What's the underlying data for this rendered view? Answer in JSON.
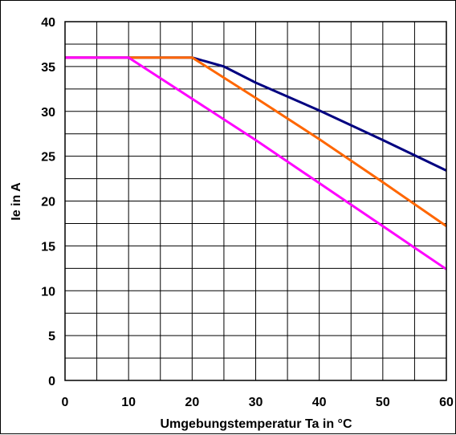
{
  "chart_data": {
    "type": "line",
    "title": "",
    "xlabel": "Umgebungstemperatur Ta in °C",
    "ylabel": "Ie in A",
    "xlim": [
      0,
      60
    ],
    "ylim": [
      0,
      40
    ],
    "x_ticks": [
      0,
      10,
      20,
      30,
      40,
      50,
      60
    ],
    "y_ticks": [
      0,
      5,
      10,
      15,
      20,
      25,
      30,
      35,
      40
    ],
    "x_tick_labels": [
      "0",
      "10",
      "20",
      "30",
      "40",
      "50",
      "60"
    ],
    "y_tick_labels": [
      "0",
      "5",
      "10",
      "15",
      "20",
      "25",
      "30",
      "35",
      "40"
    ],
    "grid": true,
    "legend": "none",
    "series": [
      {
        "color": "#000080",
        "points": [
          [
            0,
            36
          ],
          [
            20,
            36
          ],
          [
            25,
            35
          ],
          [
            30,
            33.2
          ],
          [
            40,
            30.1
          ],
          [
            50,
            26.8
          ],
          [
            60,
            23.4
          ]
        ]
      },
      {
        "color": "#ff6600",
        "points": [
          [
            0,
            36
          ],
          [
            20,
            36
          ],
          [
            30,
            31.5
          ],
          [
            40,
            26.9
          ],
          [
            50,
            22.1
          ],
          [
            60,
            17.2
          ]
        ]
      },
      {
        "color": "#ff00ff",
        "points": [
          [
            0,
            36
          ],
          [
            10,
            36
          ],
          [
            20,
            31.4
          ],
          [
            30,
            26.8
          ],
          [
            40,
            22.0
          ],
          [
            50,
            17.2
          ],
          [
            60,
            12.4
          ]
        ]
      }
    ]
  }
}
